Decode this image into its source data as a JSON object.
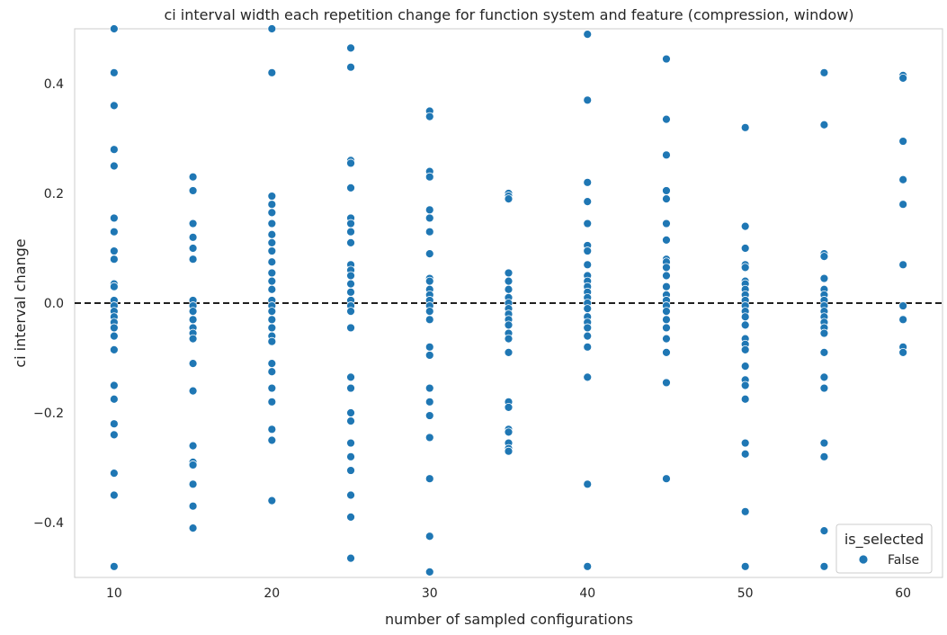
{
  "chart_data": {
    "type": "scatter",
    "title": "ci interval width each repetition change for function system and feature (compression, window)",
    "xlabel": "number of sampled configurations",
    "ylabel": "ci interval change",
    "xlim": [
      7.5,
      62.5
    ],
    "ylim": [
      -0.5,
      0.5
    ],
    "xticks": [
      10,
      20,
      30,
      40,
      50,
      60
    ],
    "yticks": [
      -0.4,
      -0.2,
      0.0,
      0.2,
      0.4
    ],
    "ytick_labels": [
      "−0.4",
      "−0.2",
      "0.0",
      "0.2",
      "0.4"
    ],
    "grid": false,
    "reference_line": {
      "y": 0.0,
      "style": "dashed",
      "color": "#000000"
    },
    "marker_color": "#1f77b4",
    "legend": {
      "title": "is_selected",
      "placement": "bottom-right",
      "entries": [
        "False"
      ]
    },
    "series": [
      {
        "name": "False",
        "points": [
          [
            10,
            0.5
          ],
          [
            10,
            0.42
          ],
          [
            10,
            0.36
          ],
          [
            10,
            0.28
          ],
          [
            10,
            0.25
          ],
          [
            10,
            0.155
          ],
          [
            10,
            0.13
          ],
          [
            10,
            0.095
          ],
          [
            10,
            0.08
          ],
          [
            10,
            0.035
          ],
          [
            10,
            0.03
          ],
          [
            10,
            0.005
          ],
          [
            10,
            -0.005
          ],
          [
            10,
            -0.015
          ],
          [
            10,
            -0.025
          ],
          [
            10,
            -0.035
          ],
          [
            10,
            -0.045
          ],
          [
            10,
            -0.06
          ],
          [
            10,
            -0.085
          ],
          [
            10,
            -0.15
          ],
          [
            10,
            -0.175
          ],
          [
            10,
            -0.22
          ],
          [
            10,
            -0.24
          ],
          [
            10,
            -0.31
          ],
          [
            10,
            -0.35
          ],
          [
            10,
            -0.48
          ],
          [
            15,
            0.23
          ],
          [
            15,
            0.205
          ],
          [
            15,
            0.145
          ],
          [
            15,
            0.12
          ],
          [
            15,
            0.1
          ],
          [
            15,
            0.08
          ],
          [
            15,
            0.005
          ],
          [
            15,
            -0.005
          ],
          [
            15,
            -0.015
          ],
          [
            15,
            -0.03
          ],
          [
            15,
            -0.045
          ],
          [
            15,
            -0.055
          ],
          [
            15,
            -0.065
          ],
          [
            15,
            -0.11
          ],
          [
            15,
            -0.16
          ],
          [
            15,
            -0.26
          ],
          [
            15,
            -0.29
          ],
          [
            15,
            -0.295
          ],
          [
            15,
            -0.33
          ],
          [
            15,
            -0.37
          ],
          [
            15,
            -0.41
          ],
          [
            20,
            0.5
          ],
          [
            20,
            0.42
          ],
          [
            20,
            0.195
          ],
          [
            20,
            0.18
          ],
          [
            20,
            0.165
          ],
          [
            20,
            0.145
          ],
          [
            20,
            0.125
          ],
          [
            20,
            0.11
          ],
          [
            20,
            0.095
          ],
          [
            20,
            0.075
          ],
          [
            20,
            0.055
          ],
          [
            20,
            0.04
          ],
          [
            20,
            0.025
          ],
          [
            20,
            0.005
          ],
          [
            20,
            -0.005
          ],
          [
            20,
            -0.015
          ],
          [
            20,
            -0.03
          ],
          [
            20,
            -0.045
          ],
          [
            20,
            -0.06
          ],
          [
            20,
            -0.07
          ],
          [
            20,
            -0.11
          ],
          [
            20,
            -0.125
          ],
          [
            20,
            -0.155
          ],
          [
            20,
            -0.18
          ],
          [
            20,
            -0.23
          ],
          [
            20,
            -0.25
          ],
          [
            20,
            -0.36
          ],
          [
            25,
            0.465
          ],
          [
            25,
            0.43
          ],
          [
            25,
            0.26
          ],
          [
            25,
            0.255
          ],
          [
            25,
            0.21
          ],
          [
            25,
            0.155
          ],
          [
            25,
            0.145
          ],
          [
            25,
            0.13
          ],
          [
            25,
            0.11
          ],
          [
            25,
            0.07
          ],
          [
            25,
            0.06
          ],
          [
            25,
            0.05
          ],
          [
            25,
            0.035
          ],
          [
            25,
            0.02
          ],
          [
            25,
            0.005
          ],
          [
            25,
            -0.005
          ],
          [
            25,
            -0.015
          ],
          [
            25,
            -0.045
          ],
          [
            25,
            -0.135
          ],
          [
            25,
            -0.155
          ],
          [
            25,
            -0.2
          ],
          [
            25,
            -0.215
          ],
          [
            25,
            -0.255
          ],
          [
            25,
            -0.28
          ],
          [
            25,
            -0.305
          ],
          [
            25,
            -0.35
          ],
          [
            25,
            -0.39
          ],
          [
            25,
            -0.465
          ],
          [
            30,
            0.35
          ],
          [
            30,
            0.34
          ],
          [
            30,
            0.24
          ],
          [
            30,
            0.23
          ],
          [
            30,
            0.17
          ],
          [
            30,
            0.155
          ],
          [
            30,
            0.13
          ],
          [
            30,
            0.09
          ],
          [
            30,
            0.045
          ],
          [
            30,
            0.04
          ],
          [
            30,
            0.025
          ],
          [
            30,
            0.015
          ],
          [
            30,
            0.005
          ],
          [
            30,
            -0.005
          ],
          [
            30,
            -0.015
          ],
          [
            30,
            -0.03
          ],
          [
            30,
            -0.08
          ],
          [
            30,
            -0.095
          ],
          [
            30,
            -0.155
          ],
          [
            30,
            -0.18
          ],
          [
            30,
            -0.205
          ],
          [
            30,
            -0.245
          ],
          [
            30,
            -0.32
          ],
          [
            30,
            -0.425
          ],
          [
            30,
            -0.49
          ],
          [
            35,
            0.2
          ],
          [
            35,
            0.195
          ],
          [
            35,
            0.19
          ],
          [
            35,
            0.055
          ],
          [
            35,
            0.04
          ],
          [
            35,
            0.025
          ],
          [
            35,
            0.01
          ],
          [
            35,
            0.0
          ],
          [
            35,
            -0.01
          ],
          [
            35,
            -0.02
          ],
          [
            35,
            -0.03
          ],
          [
            35,
            -0.04
          ],
          [
            35,
            -0.055
          ],
          [
            35,
            -0.065
          ],
          [
            35,
            -0.09
          ],
          [
            35,
            -0.18
          ],
          [
            35,
            -0.19
          ],
          [
            35,
            -0.23
          ],
          [
            35,
            -0.235
          ],
          [
            35,
            -0.255
          ],
          [
            35,
            -0.265
          ],
          [
            35,
            -0.27
          ],
          [
            40,
            0.49
          ],
          [
            40,
            0.37
          ],
          [
            40,
            0.22
          ],
          [
            40,
            0.185
          ],
          [
            40,
            0.145
          ],
          [
            40,
            0.105
          ],
          [
            40,
            0.095
          ],
          [
            40,
            0.07
          ],
          [
            40,
            0.05
          ],
          [
            40,
            0.04
          ],
          [
            40,
            0.03
          ],
          [
            40,
            0.02
          ],
          [
            40,
            0.01
          ],
          [
            40,
            0.0
          ],
          [
            40,
            -0.01
          ],
          [
            40,
            -0.025
          ],
          [
            40,
            -0.035
          ],
          [
            40,
            -0.045
          ],
          [
            40,
            -0.06
          ],
          [
            40,
            -0.08
          ],
          [
            40,
            -0.135
          ],
          [
            40,
            -0.33
          ],
          [
            40,
            -0.48
          ],
          [
            45,
            0.445
          ],
          [
            45,
            0.335
          ],
          [
            45,
            0.27
          ],
          [
            45,
            0.205
          ],
          [
            45,
            0.19
          ],
          [
            45,
            0.145
          ],
          [
            45,
            0.115
          ],
          [
            45,
            0.08
          ],
          [
            45,
            0.075
          ],
          [
            45,
            0.065
          ],
          [
            45,
            0.05
          ],
          [
            45,
            0.03
          ],
          [
            45,
            0.015
          ],
          [
            45,
            0.005
          ],
          [
            45,
            -0.005
          ],
          [
            45,
            -0.015
          ],
          [
            45,
            -0.03
          ],
          [
            45,
            -0.045
          ],
          [
            45,
            -0.065
          ],
          [
            45,
            -0.09
          ],
          [
            45,
            -0.145
          ],
          [
            45,
            -0.32
          ],
          [
            50,
            0.32
          ],
          [
            50,
            0.14
          ],
          [
            50,
            0.1
          ],
          [
            50,
            0.07
          ],
          [
            50,
            0.065
          ],
          [
            50,
            0.04
          ],
          [
            50,
            0.035
          ],
          [
            50,
            0.025
          ],
          [
            50,
            0.015
          ],
          [
            50,
            0.005
          ],
          [
            50,
            -0.005
          ],
          [
            50,
            -0.015
          ],
          [
            50,
            -0.025
          ],
          [
            50,
            -0.04
          ],
          [
            50,
            -0.065
          ],
          [
            50,
            -0.075
          ],
          [
            50,
            -0.085
          ],
          [
            50,
            -0.115
          ],
          [
            50,
            -0.14
          ],
          [
            50,
            -0.15
          ],
          [
            50,
            -0.175
          ],
          [
            50,
            -0.255
          ],
          [
            50,
            -0.275
          ],
          [
            50,
            -0.38
          ],
          [
            50,
            -0.48
          ],
          [
            55,
            0.42
          ],
          [
            55,
            0.325
          ],
          [
            55,
            0.09
          ],
          [
            55,
            0.085
          ],
          [
            55,
            0.045
          ],
          [
            55,
            0.025
          ],
          [
            55,
            0.015
          ],
          [
            55,
            0.005
          ],
          [
            55,
            -0.005
          ],
          [
            55,
            -0.015
          ],
          [
            55,
            -0.025
          ],
          [
            55,
            -0.035
          ],
          [
            55,
            -0.045
          ],
          [
            55,
            -0.055
          ],
          [
            55,
            -0.09
          ],
          [
            55,
            -0.135
          ],
          [
            55,
            -0.155
          ],
          [
            55,
            -0.255
          ],
          [
            55,
            -0.28
          ],
          [
            55,
            -0.415
          ],
          [
            55,
            -0.48
          ],
          [
            60,
            0.415
          ],
          [
            60,
            0.41
          ],
          [
            60,
            0.295
          ],
          [
            60,
            0.225
          ],
          [
            60,
            0.18
          ],
          [
            60,
            0.07
          ],
          [
            60,
            -0.005
          ],
          [
            60,
            -0.03
          ],
          [
            60,
            -0.08
          ],
          [
            60,
            -0.09
          ]
        ]
      }
    ]
  }
}
